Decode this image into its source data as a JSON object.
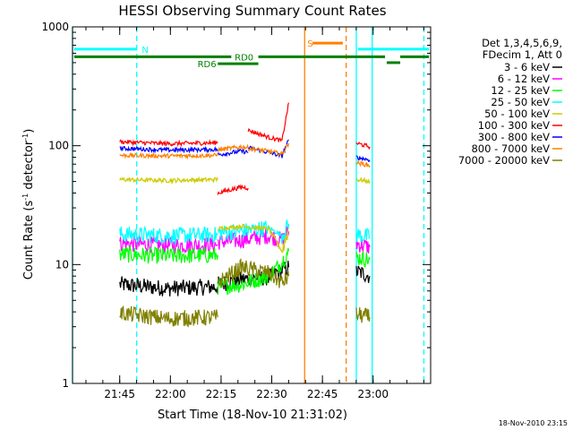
{
  "chart_data": {
    "type": "line",
    "title": "HESSI Observing Summary Count Rates",
    "xlabel": "Start Time (18-Nov-10 21:31:02)",
    "ylabel_main": "Count Rate (s",
    "ylabel_sup1": "-1",
    "ylabel_mid": " detector",
    "ylabel_sup2": "-1",
    "ylabel_end": ")",
    "ylog": true,
    "ylim": [
      1,
      1000
    ],
    "xlim_minutes": [
      0,
      106
    ],
    "x_ticks": [
      {
        "label": "21:45",
        "minutes": 13.97
      },
      {
        "label": "22:00",
        "minutes": 28.97
      },
      {
        "label": "22:15",
        "minutes": 43.97
      },
      {
        "label": "22:30",
        "minutes": 58.97
      },
      {
        "label": "22:45",
        "minutes": 73.97
      },
      {
        "label": "23:00",
        "minutes": 88.97
      }
    ],
    "y_ticks": [
      {
        "label": "1",
        "value": 1
      },
      {
        "label": "10",
        "value": 10
      },
      {
        "label": "100",
        "value": 100
      },
      {
        "label": "1000",
        "value": 1000
      }
    ],
    "legend": {
      "header_line1": "Det 1,3,4,5,6,9,",
      "header_line2": "FDecim 1, Att 0",
      "position": "right"
    },
    "series": [
      {
        "name": "3 - 6 keV",
        "color": "#000000",
        "segments": [
          [
            [
              14,
              6.8
            ],
            [
              28,
              6.3
            ],
            [
              43,
              6.5
            ]
          ],
          [
            [
              43,
              6.8
            ],
            [
              50,
              7.5
            ],
            [
              58,
              7.8
            ],
            [
              62,
              9.0
            ],
            [
              64,
              9.5
            ]
          ],
          [
            [
              84,
              8.8
            ],
            [
              88,
              8.0
            ]
          ]
        ]
      },
      {
        "name": "6 - 12 keV",
        "color": "#ff00ff",
        "segments": [
          [
            [
              14,
              15.0
            ],
            [
              28,
              14.5
            ],
            [
              43,
              14.7
            ]
          ],
          [
            [
              43,
              15.5
            ],
            [
              50,
              16.0
            ],
            [
              58,
              17.5
            ],
            [
              62,
              16.0
            ],
            [
              64,
              19.0
            ]
          ],
          [
            [
              84,
              15.0
            ],
            [
              88,
              14.0
            ]
          ]
        ]
      },
      {
        "name": "12 - 25 keV",
        "color": "#00ff00",
        "segments": [
          [
            [
              14,
              12.2
            ],
            [
              28,
              11.8
            ],
            [
              43,
              12.0
            ]
          ],
          [
            [
              43,
              6.5
            ],
            [
              50,
              6.8
            ],
            [
              58,
              8.0
            ],
            [
              62,
              10.5
            ],
            [
              64,
              13.0
            ]
          ],
          [
            [
              84,
              11.5
            ],
            [
              88,
              11.0
            ]
          ]
        ]
      },
      {
        "name": "25 - 50 keV",
        "color": "#00ffff",
        "segments": [
          [
            [
              14,
              18.0
            ],
            [
              28,
              17.5
            ],
            [
              43,
              17.8
            ]
          ],
          [
            [
              43,
              18.5
            ],
            [
              50,
              19.0
            ],
            [
              58,
              20.5
            ],
            [
              62,
              17.5
            ],
            [
              64,
              22.0
            ]
          ],
          [
            [
              84,
              18.0
            ],
            [
              88,
              17.0
            ]
          ]
        ]
      },
      {
        "name": "50 - 100 keV",
        "color": "#cccc00",
        "segments": [
          [
            [
              14,
              52.0
            ],
            [
              28,
              51.0
            ],
            [
              43,
              52.0
            ]
          ],
          [
            [
              43,
              20.0
            ],
            [
              50,
              21.0
            ],
            [
              58,
              20.0
            ],
            [
              62,
              13.0
            ],
            [
              64,
              20.0
            ]
          ],
          [
            [
              84,
              52.0
            ],
            [
              88,
              50.0
            ]
          ]
        ]
      },
      {
        "name": "100 - 300 keV",
        "color": "#ff0000",
        "segments": [
          [
            [
              14,
              108.0
            ],
            [
              28,
              104.0
            ],
            [
              43,
              106.0
            ]
          ],
          [
            [
              43,
              40.0
            ],
            [
              50,
              45.0
            ],
            [
              52,
              44.0
            ]
          ],
          [
            [
              52,
              135.0
            ],
            [
              58,
              118.0
            ],
            [
              62,
              110.0
            ],
            [
              64,
              230.0
            ]
          ],
          [
            [
              84,
              105.0
            ],
            [
              88,
              98.0
            ]
          ]
        ]
      },
      {
        "name": "300 - 800 keV",
        "color": "#0000ff",
        "segments": [
          [
            [
              14,
              95.0
            ],
            [
              28,
              92.0
            ],
            [
              43,
              93.0
            ]
          ],
          [
            [
              43,
              84.0
            ],
            [
              50,
              90.0
            ],
            [
              52,
              88.0
            ]
          ],
          [
            [
              52,
              96.0
            ],
            [
              58,
              88.0
            ],
            [
              62,
              82.0
            ],
            [
              64,
              112.0
            ]
          ],
          [
            [
              84,
              80.0
            ],
            [
              88,
              76.0
            ]
          ]
        ]
      },
      {
        "name": "800 - 7000 keV",
        "color": "#ff8000",
        "segments": [
          [
            [
              14,
              83.0
            ],
            [
              28,
              82.0
            ],
            [
              43,
              83.0
            ]
          ],
          [
            [
              43,
              92.0
            ],
            [
              50,
              98.0
            ],
            [
              52,
              96.0
            ]
          ],
          [
            [
              52,
              95.0
            ],
            [
              58,
              90.0
            ],
            [
              62,
              85.0
            ],
            [
              64,
              105.0
            ]
          ],
          [
            [
              84,
              72.0
            ],
            [
              88,
              68.0
            ]
          ]
        ]
      },
      {
        "name": "7000 - 20000 keV",
        "color": "#808000",
        "segments": [
          [
            [
              14,
              3.9
            ],
            [
              28,
              3.5
            ],
            [
              43,
              3.6
            ]
          ],
          [
            [
              43,
              7.0
            ],
            [
              50,
              9.5
            ],
            [
              58,
              8.5
            ],
            [
              62,
              7.0
            ],
            [
              64,
              8.0
            ]
          ],
          [
            [
              84,
              3.8
            ],
            [
              88,
              3.6
            ]
          ]
        ]
      }
    ],
    "vertical_lines": [
      {
        "minutes": 0,
        "color": "#00ffff",
        "style": "solid"
      },
      {
        "minutes": 19,
        "color": "#00ffff",
        "style": "dashed"
      },
      {
        "minutes": 68.7,
        "color": "#ff8000",
        "style": "solid"
      },
      {
        "minutes": 81,
        "color": "#ff8000",
        "style": "dashed"
      },
      {
        "minutes": 84,
        "color": "#00ffff",
        "style": "solid"
      },
      {
        "minutes": 88.7,
        "color": "#00ffff",
        "style": "solid"
      },
      {
        "minutes": 104,
        "color": "#00ffff",
        "style": "dashed"
      }
    ],
    "flag_bars": [
      {
        "label": "N",
        "color": "#00ffff",
        "y_value": 650,
        "segments": [
          [
            0.5,
            19
          ]
        ],
        "label_at": 20.5
      },
      {
        "label": "N",
        "color": "#00ffff",
        "y_value": 650,
        "segments": [
          [
            84.5,
            105.5
          ]
        ],
        "label_at": null
      },
      {
        "label": "S",
        "color": "#ff8000",
        "y_value": 730,
        "segments": [
          [
            71,
            80
          ]
        ],
        "label_at": 69.5
      },
      {
        "label": "RD0",
        "color": "#008000",
        "y_value": 560,
        "segments": [
          [
            0.5,
            47
          ],
          [
            55,
            92.5
          ],
          [
            97,
            105.5
          ]
        ],
        "label_at": 48
      },
      {
        "label": "",
        "color": "#008000",
        "y_value": 500,
        "segments": [
          [
            93,
            97
          ]
        ],
        "label_at": null
      },
      {
        "label": "RD6",
        "color": "#008000",
        "y_value": 490,
        "segments": [
          [
            43,
            55
          ]
        ],
        "label_at": 37
      }
    ],
    "footer_stamp": "18-Nov-2010 23:15",
    "grid": false
  }
}
